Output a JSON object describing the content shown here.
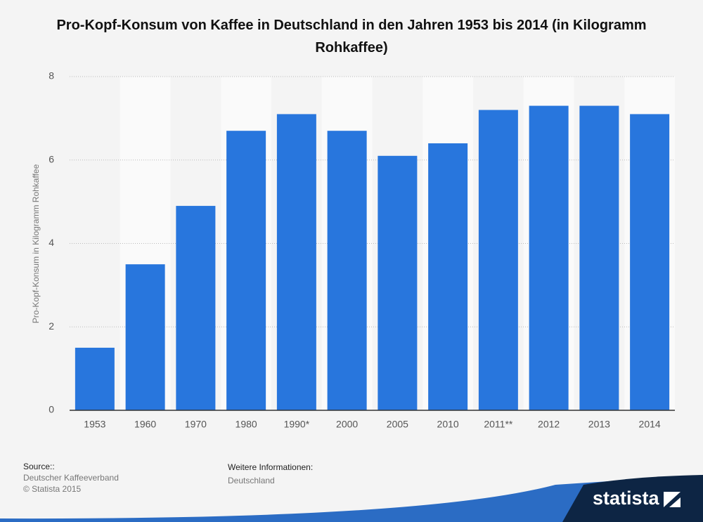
{
  "chart_data": {
    "type": "bar",
    "title": "Pro-Kopf-Konsum von Kaffee in Deutschland in den Jahren 1953 bis 2014 (in Kilogramm Rohkaffee)",
    "y_label": "Pro-Kopf-Konsum in Kilogramm Rohkaffee",
    "categories": [
      "1953",
      "1960",
      "1970",
      "1980",
      "1990*",
      "2000",
      "2005",
      "2010",
      "2011**",
      "2012",
      "2013",
      "2014"
    ],
    "values": [
      1.5,
      3.5,
      4.9,
      6.7,
      7.1,
      6.7,
      6.1,
      6.4,
      7.2,
      7.3,
      7.3,
      7.1
    ],
    "color": "#2876dd",
    "ylim": [
      0,
      8
    ],
    "yticks": [
      0,
      2,
      4,
      6,
      8
    ],
    "grid": true
  },
  "footer": {
    "source_label": "Source::",
    "source": "Deutscher Kaffeeverband",
    "copyright": "© Statista 2015",
    "info_label": "Weitere Informationen:",
    "info": "Deutschland",
    "logo": "statista"
  }
}
